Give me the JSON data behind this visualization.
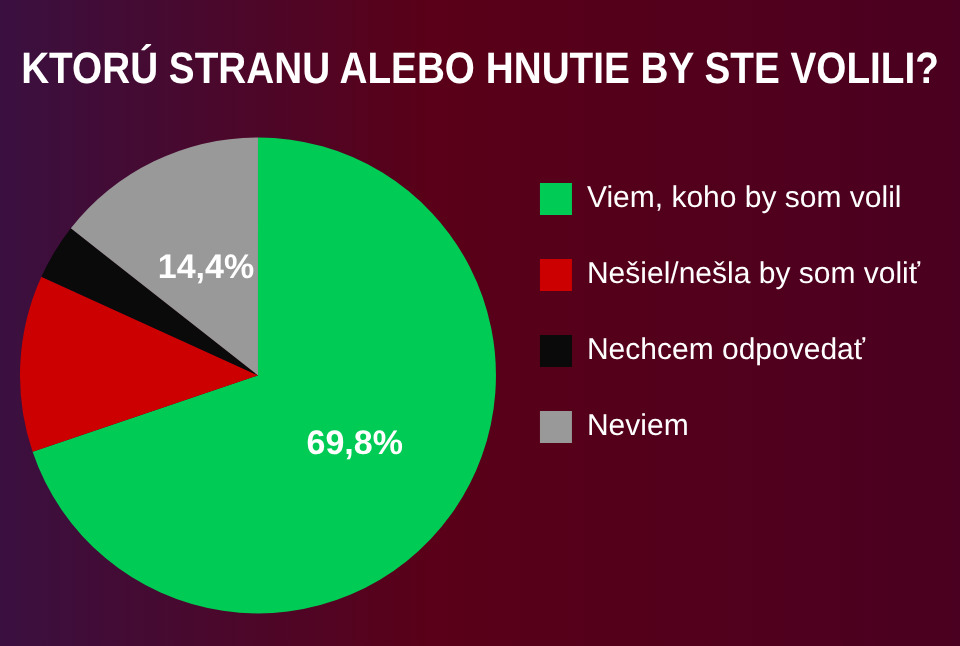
{
  "chart_data": {
    "type": "pie",
    "title": "KTORÚ STRANU ALEBO HNUTIE BY STE VOLILI?",
    "categories": [
      "Viem, koho by som volil",
      "Nešiel/nešla by som voliť",
      "Nechcem odpovedať",
      "Neviem"
    ],
    "values": [
      69.8,
      12.0,
      3.8,
      14.4
    ],
    "value_labels": [
      "69,8%",
      null,
      null,
      "14,4%"
    ],
    "colors": [
      "#00cc55",
      "#cc0000",
      "#0a0a0a",
      "#999999"
    ],
    "legend": "right"
  }
}
